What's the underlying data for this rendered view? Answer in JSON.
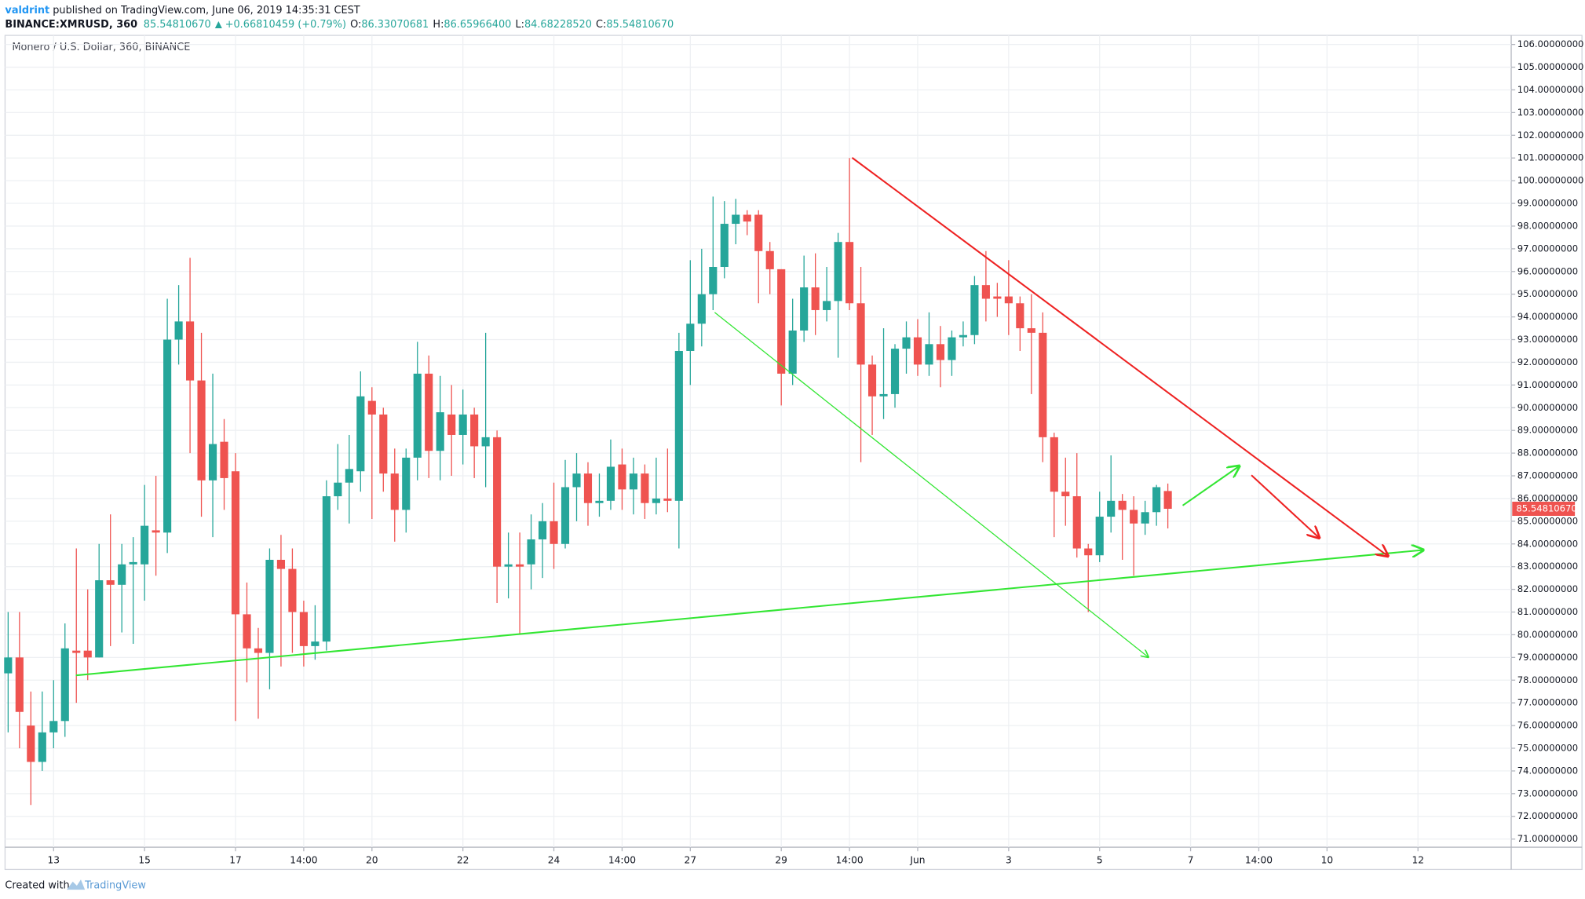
{
  "chart_data": {
    "type": "candlestick",
    "header": {
      "author": "valdrint",
      "published": " published on TradingView.com, June 06, 2019 14:35:31 CEST",
      "symbol": "BINANCE:XMRUSD, 360",
      "price": "85.54810670",
      "change": "+0.66810459 (+0.79%)",
      "ohlc": [
        {
          "label": "O:",
          "value": "86.33070681"
        },
        {
          "label": "H:",
          "value": "86.65966400"
        },
        {
          "label": "L:",
          "value": "84.68228520"
        },
        {
          "label": "C:",
          "value": "85.54810670"
        }
      ]
    },
    "title": "Monero / U.S. Dollar, 360, BINANCE",
    "footer": {
      "created": "Created with",
      "brand": "TradingView"
    },
    "up_color": "#26a69a",
    "down_color": "#ef5350",
    "grid": true,
    "open": [
      78.3,
      79,
      76,
      74.4,
      75.7,
      76.2,
      79.3,
      79.3,
      79,
      82.4,
      82.2,
      83.1,
      83.1,
      84.6,
      84.5,
      93,
      93.8,
      91.2,
      86.8,
      88.5,
      87.2,
      80.9,
      79.4,
      79.2,
      83.3,
      82.9,
      81,
      79.5,
      79.7,
      86.1,
      86.7,
      87.2,
      90.3,
      89.7,
      87.1,
      85.5,
      87.8,
      91.5,
      88.1,
      89.7,
      88.8,
      89.7,
      88.3,
      88.7,
      83,
      83.1,
      83.1,
      84.2,
      85,
      84,
      86.5,
      87.1,
      85.8,
      85.9,
      87.5,
      86.4,
      87.1,
      85.8,
      86,
      85.9,
      92.5,
      93.7,
      95,
      96.2,
      98.1,
      98.5,
      98.5,
      96.9,
      96.1,
      91.5,
      93.4,
      95.3,
      94.3,
      94.7,
      97.3,
      94.6,
      91.9,
      90.5,
      90.6,
      92.6,
      93.1,
      91.9,
      92.8,
      92.1,
      93.1,
      93.2,
      95.4,
      94.9,
      94.9,
      94.6,
      93.5,
      93.3,
      88.7,
      86.3,
      86.1,
      83.8,
      83.5,
      85.2,
      85.9,
      85.5,
      84.9,
      85.4,
      86.33070681
    ],
    "high": [
      81,
      81,
      77.5,
      77.5,
      78,
      80.5,
      83.8,
      82,
      84,
      85.3,
      84,
      84.3,
      86.6,
      87,
      94.8,
      95.4,
      96.6,
      93.3,
      91.5,
      89.5,
      88,
      82.3,
      80.3,
      83.8,
      84.4,
      83.8,
      81.5,
      81.3,
      86.8,
      88.4,
      88.8,
      91.6,
      90.9,
      90,
      88.2,
      88.2,
      92.9,
      92.3,
      91.4,
      91,
      90.8,
      90,
      93.3,
      89,
      84.5,
      84.5,
      85.3,
      85.8,
      86.7,
      87.7,
      88,
      87.6,
      87.1,
      88.6,
      88.2,
      87.8,
      87.5,
      87.8,
      88.2,
      93.3,
      96.5,
      97,
      99.3,
      99.1,
      99.2,
      98.7,
      98.7,
      97.3,
      96.1,
      94.8,
      96.7,
      96.8,
      96.2,
      97.7,
      101,
      96.2,
      92.3,
      93.5,
      92.8,
      93.8,
      93.9,
      94.2,
      93.6,
      93.4,
      93.8,
      95.8,
      96.9,
      95.5,
      96.5,
      94.9,
      95,
      94.2,
      88.9,
      87.8,
      88,
      84,
      86.3,
      87.9,
      86.2,
      86.1,
      85.9,
      86.6,
      86.659664
    ],
    "low": [
      75.7,
      75,
      72.5,
      74,
      75,
      75.5,
      77,
      78,
      79,
      79.5,
      80.1,
      79.6,
      81.5,
      82.6,
      83.6,
      91.9,
      88,
      85.2,
      84.3,
      85.5,
      76.2,
      77.9,
      76.3,
      77.6,
      78.6,
      79.2,
      78.6,
      78.9,
      79.3,
      85.5,
      84.9,
      86.3,
      85.1,
      86.3,
      84.1,
      84.5,
      86.8,
      86.9,
      86.8,
      87,
      87.5,
      86.9,
      86.5,
      81.4,
      81.6,
      80,
      82,
      82.5,
      82.9,
      83.8,
      85,
      84.8,
      85.2,
      85.5,
      85.5,
      85.3,
      85.1,
      85.3,
      85.4,
      83.8,
      91,
      92.7,
      94.3,
      95.7,
      97.2,
      97.6,
      94.6,
      95,
      90.1,
      91,
      92.9,
      93.2,
      93.8,
      92.2,
      94.3,
      87.6,
      88.8,
      89.5,
      90,
      91.5,
      91.4,
      91.4,
      90.9,
      91.4,
      92.7,
      92.8,
      93.8,
      94,
      93.2,
      92.5,
      90.6,
      87.6,
      84.3,
      84.8,
      83.4,
      81,
      83.2,
      84.5,
      83.3,
      82.6,
      84.4,
      84.8,
      84.6822852
    ],
    "close": [
      79,
      76.6,
      74.4,
      75.7,
      76.2,
      79.4,
      79.2,
      79,
      82.4,
      82.2,
      83.1,
      83.2,
      84.8,
      84.5,
      93,
      93.8,
      91.2,
      86.8,
      88.4,
      86.9,
      80.9,
      79.4,
      79.2,
      83.3,
      82.9,
      81,
      79.5,
      79.7,
      86.1,
      86.7,
      87.3,
      90.5,
      89.7,
      87.1,
      85.5,
      87.8,
      91.5,
      88.1,
      89.8,
      88.8,
      89.7,
      88.3,
      88.7,
      83,
      83.1,
      83,
      84.2,
      85,
      84,
      86.5,
      87.1,
      85.8,
      85.9,
      87.4,
      86.4,
      87.1,
      85.8,
      86,
      85.9,
      92.5,
      93.7,
      95,
      96.2,
      98.1,
      98.5,
      98.2,
      96.9,
      96.1,
      91.5,
      93.4,
      95.3,
      94.3,
      94.7,
      97.3,
      94.6,
      91.9,
      90.5,
      90.6,
      92.6,
      93.1,
      91.9,
      92.8,
      92.1,
      93.1,
      93.2,
      95.4,
      94.8,
      94.8,
      94.6,
      93.5,
      93.3,
      88.7,
      86.3,
      86.1,
      83.8,
      83.5,
      85.2,
      85.9,
      85.5,
      84.9,
      85.4,
      86.5,
      85.5481067
    ],
    "last_value_label": "85.54810670",
    "xlim": [
      -0.27,
      132.2
    ],
    "xticks": [
      {
        "value": 4,
        "label": "13"
      },
      {
        "value": 12,
        "label": "15"
      },
      {
        "value": 20,
        "label": "17"
      },
      {
        "value": 26,
        "label": "14:00"
      },
      {
        "value": 32,
        "label": "20"
      },
      {
        "value": 40,
        "label": "22"
      },
      {
        "value": 48,
        "label": "24"
      },
      {
        "value": 54,
        "label": "14:00"
      },
      {
        "value": 60,
        "label": "27"
      },
      {
        "value": 68,
        "label": "29"
      },
      {
        "value": 74,
        "label": "14:00"
      },
      {
        "value": 80,
        "label": "Jun"
      },
      {
        "value": 88,
        "label": "3"
      },
      {
        "value": 96,
        "label": "5"
      },
      {
        "value": 104,
        "label": "7"
      },
      {
        "value": 110,
        "label": "14:00"
      },
      {
        "value": 116,
        "label": "10"
      },
      {
        "value": 124,
        "label": "12"
      }
    ],
    "ylim": [
      70.64,
      106.4
    ],
    "yticks": [
      {
        "value": 71,
        "label": "71.00000000"
      },
      {
        "value": 72,
        "label": "72.00000000"
      },
      {
        "value": 73,
        "label": "73.00000000"
      },
      {
        "value": 74,
        "label": "74.00000000"
      },
      {
        "value": 75,
        "label": "75.00000000"
      },
      {
        "value": 76,
        "label": "76.00000000"
      },
      {
        "value": 77,
        "label": "77.00000000"
      },
      {
        "value": 78,
        "label": "78.00000000"
      },
      {
        "value": 79,
        "label": "79.00000000"
      },
      {
        "value": 80,
        "label": "80.00000000"
      },
      {
        "value": 81,
        "label": "81.00000000"
      },
      {
        "value": 82,
        "label": "82.00000000"
      },
      {
        "value": 83,
        "label": "83.00000000"
      },
      {
        "value": 84,
        "label": "84.00000000"
      },
      {
        "value": 85,
        "label": "85.00000000"
      },
      {
        "value": 86,
        "label": "86.00000000"
      },
      {
        "value": 87,
        "label": "87.00000000"
      },
      {
        "value": 88,
        "label": "88.00000000"
      },
      {
        "value": 89,
        "label": "89.00000000"
      },
      {
        "value": 90,
        "label": "90.00000000"
      },
      {
        "value": 91,
        "label": "91.00000000"
      },
      {
        "value": 92,
        "label": "92.00000000"
      },
      {
        "value": 93,
        "label": "93.00000000"
      },
      {
        "value": 94,
        "label": "94.00000000"
      },
      {
        "value": 95,
        "label": "95.00000000"
      },
      {
        "value": 96,
        "label": "96.00000000"
      },
      {
        "value": 97,
        "label": "97.00000000"
      },
      {
        "value": 98,
        "label": "98.00000000"
      },
      {
        "value": 99,
        "label": "99.00000000"
      },
      {
        "value": 100,
        "label": "100.00000000"
      },
      {
        "value": 101,
        "label": "101.00000000"
      },
      {
        "value": 102,
        "label": "102.00000000"
      },
      {
        "value": 103,
        "label": "103.00000000"
      },
      {
        "value": 104,
        "label": "104.00000000"
      },
      {
        "value": 105,
        "label": "105.00000000"
      },
      {
        "value": 106,
        "label": "106.00000000"
      }
    ]
  }
}
